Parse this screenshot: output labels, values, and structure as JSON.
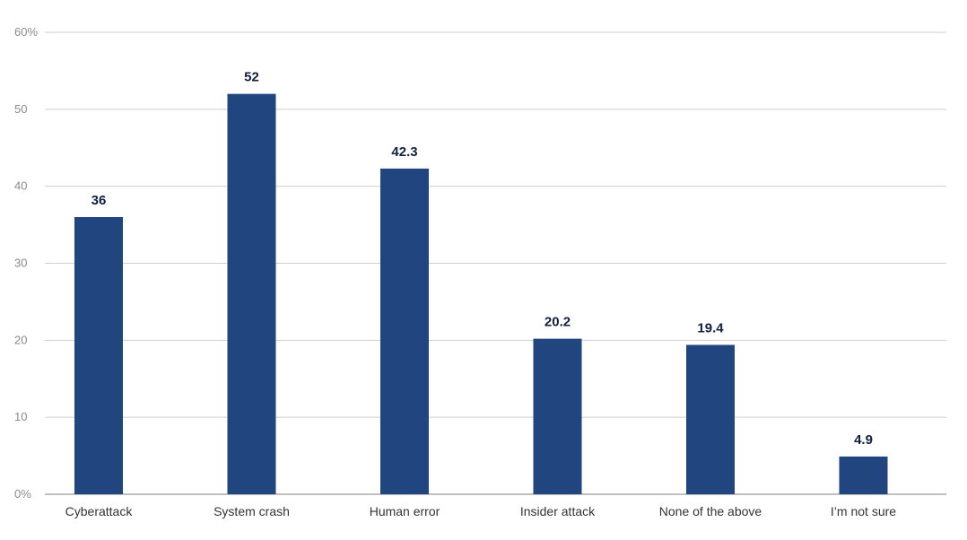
{
  "chart_data": {
    "type": "bar",
    "categories": [
      "Cyberattack",
      "System crash",
      "Human error",
      "Insider attack",
      "None of the above",
      "I’m not sure"
    ],
    "values": [
      36,
      52,
      42.3,
      20.2,
      19.4,
      4.9
    ],
    "value_labels": [
      "36",
      "52",
      "42.3",
      "20.2",
      "19.4",
      "4.9"
    ],
    "ylim": [
      0,
      60
    ],
    "y_ticks": [
      0,
      10,
      20,
      30,
      40,
      50,
      60
    ],
    "y_tick_labels": [
      "0%",
      "10",
      "20",
      "30",
      "40",
      "50",
      "60%"
    ],
    "grid": true,
    "legend": "none",
    "colors": {
      "bar": "#21457e"
    }
  }
}
